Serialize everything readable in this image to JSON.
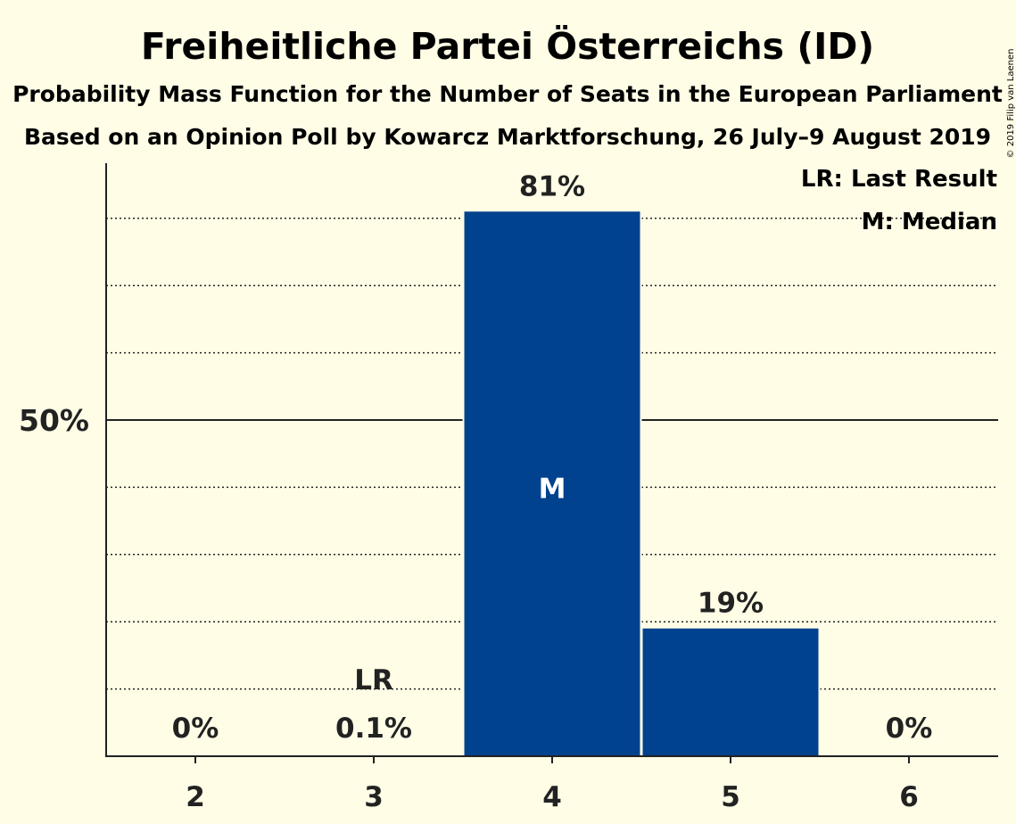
{
  "title": "Freiheitliche Partei Österreichs (ID)",
  "subtitle1": "Probability Mass Function for the Number of Seats in the European Parliament",
  "subtitle2": "Based on an Opinion Poll by Kowarcz Marktforschung, 26 July–9 August 2019",
  "copyright": "© 2019 Filip van Laenen",
  "legend": {
    "last_result": "LR: Last Result",
    "median": "M: Median"
  },
  "colors": {
    "background": "#fffde6",
    "bar": "#00428e",
    "text": "#222222"
  },
  "chart_data": {
    "type": "bar",
    "categories": [
      "2",
      "3",
      "4",
      "5",
      "6"
    ],
    "values": [
      0,
      0.1,
      81,
      19,
      0
    ],
    "value_labels": [
      "0%",
      "0.1%",
      "81%",
      "19%",
      "0%"
    ],
    "ylim": [
      0,
      88
    ],
    "yticks": [
      {
        "value": 50,
        "label": "50%"
      }
    ],
    "gridlines_dotted": [
      10,
      20,
      30,
      40,
      60,
      70,
      80
    ],
    "gridline_solid": 50,
    "last_result_category": "3",
    "last_result_marker": "LR",
    "median_category": "4",
    "median_marker": "M",
    "legend_position": "top-right"
  }
}
